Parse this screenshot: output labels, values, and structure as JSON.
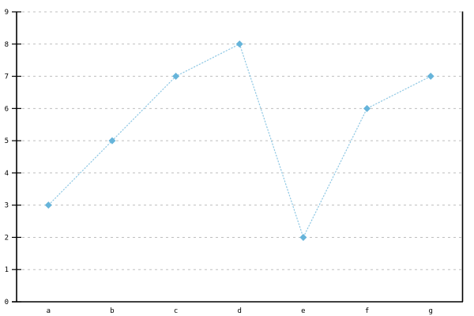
{
  "chart_data": {
    "type": "line",
    "title": "",
    "xlabel": "",
    "ylabel": "",
    "categories": [
      "a",
      "b",
      "c",
      "d",
      "e",
      "f",
      "g"
    ],
    "values": [
      3,
      5,
      7,
      8,
      2,
      6,
      7
    ],
    "ylim": [
      0,
      9
    ],
    "yticks": [
      0,
      1,
      2,
      3,
      4,
      5,
      6,
      7,
      8,
      9
    ],
    "grid": {
      "horizontal": true,
      "vertical": false,
      "style": "dashed"
    },
    "legend_position": "none",
    "marker": "diamond",
    "frame": {
      "left": true,
      "bottom": true,
      "right": true,
      "top": false
    },
    "colors": {
      "line": "#8FC8E4",
      "marker": "#66B4DA",
      "grid": "#BFBFBF",
      "axis": "#000000",
      "label": "#000000",
      "background": "#FFFFFF"
    }
  }
}
